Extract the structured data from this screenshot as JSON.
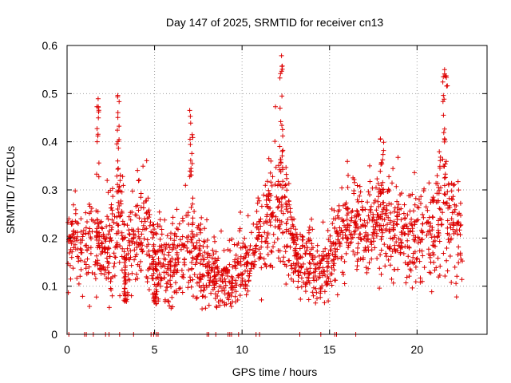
{
  "chart_data": {
    "type": "scatter",
    "title": "Day 147 of 2025, SRMTID for receiver cn13",
    "xlabel": "GPS time / hours",
    "ylabel": "SRMTID / TECUs",
    "xlim": [
      0,
      24
    ],
    "ylim": [
      0,
      0.6
    ],
    "xticks": [
      0,
      5,
      10,
      15,
      20
    ],
    "xtick_labels": [
      "0",
      "5",
      "10",
      "15",
      "20"
    ],
    "yticks": [
      0,
      0.1,
      0.2,
      0.3,
      0.4,
      0.5,
      0.6
    ],
    "ytick_labels": [
      "0",
      "0.1",
      "0.2",
      "0.3",
      "0.4",
      "0.5",
      "0.6"
    ],
    "grid": true,
    "marker": "+",
    "color": "#dd0000",
    "series_name": "SRMTID",
    "profile": [
      [
        0.0,
        0.19,
        0.05
      ],
      [
        0.5,
        0.22,
        0.05
      ],
      [
        1.0,
        0.17,
        0.04
      ],
      [
        1.5,
        0.2,
        0.06
      ],
      [
        2.0,
        0.17,
        0.04
      ],
      [
        2.5,
        0.2,
        0.06
      ],
      [
        3.0,
        0.22,
        0.07
      ],
      [
        3.5,
        0.15,
        0.05
      ],
      [
        4.0,
        0.22,
        0.06
      ],
      [
        4.5,
        0.22,
        0.06
      ],
      [
        5.0,
        0.16,
        0.05
      ],
      [
        5.5,
        0.15,
        0.04
      ],
      [
        6.0,
        0.14,
        0.04
      ],
      [
        6.5,
        0.16,
        0.04
      ],
      [
        7.0,
        0.17,
        0.06
      ],
      [
        7.5,
        0.15,
        0.04
      ],
      [
        8.0,
        0.14,
        0.04
      ],
      [
        8.5,
        0.12,
        0.03
      ],
      [
        9.0,
        0.11,
        0.03
      ],
      [
        9.5,
        0.12,
        0.03
      ],
      [
        10.0,
        0.14,
        0.04
      ],
      [
        10.5,
        0.17,
        0.03
      ],
      [
        11.0,
        0.21,
        0.05
      ],
      [
        11.5,
        0.25,
        0.06
      ],
      [
        12.0,
        0.27,
        0.07
      ],
      [
        12.5,
        0.24,
        0.06
      ],
      [
        13.0,
        0.17,
        0.04
      ],
      [
        13.5,
        0.15,
        0.04
      ],
      [
        14.0,
        0.14,
        0.04
      ],
      [
        14.5,
        0.13,
        0.03
      ],
      [
        15.0,
        0.15,
        0.04
      ],
      [
        15.5,
        0.2,
        0.05
      ],
      [
        16.0,
        0.22,
        0.05
      ],
      [
        16.5,
        0.23,
        0.05
      ],
      [
        17.0,
        0.21,
        0.05
      ],
      [
        17.5,
        0.22,
        0.05
      ],
      [
        18.0,
        0.23,
        0.05
      ],
      [
        18.5,
        0.22,
        0.05
      ],
      [
        19.0,
        0.23,
        0.05
      ],
      [
        19.5,
        0.2,
        0.05
      ],
      [
        20.0,
        0.21,
        0.05
      ],
      [
        20.5,
        0.21,
        0.05
      ],
      [
        21.0,
        0.2,
        0.05
      ],
      [
        21.5,
        0.29,
        0.08
      ],
      [
        22.0,
        0.22,
        0.06
      ],
      [
        22.5,
        0.2,
        0.05
      ]
    ],
    "spikes": [
      [
        1.75,
        0.5,
        0.15
      ],
      [
        2.9,
        0.51,
        0.15
      ],
      [
        3.3,
        0.06,
        0.1
      ],
      [
        5.0,
        0.06,
        0.2
      ],
      [
        7.1,
        0.47,
        0.2
      ],
      [
        12.25,
        0.58,
        0.2
      ],
      [
        18.0,
        0.41,
        0.2
      ],
      [
        21.6,
        0.55,
        0.3
      ]
    ],
    "zero_points": [
      0.1,
      1.0,
      1.1,
      1.5,
      2.2,
      2.4,
      3.0,
      3.8,
      4.8,
      4.95,
      5.1,
      5.2,
      8.0,
      8.1,
      8.5,
      9.2,
      9.3,
      9.4,
      9.8,
      10.8,
      11.0,
      13.3,
      14.5,
      15.3,
      15.4,
      16.5
    ],
    "n_points": 1900,
    "x_range": [
      0.05,
      22.6
    ],
    "seed": 147
  }
}
